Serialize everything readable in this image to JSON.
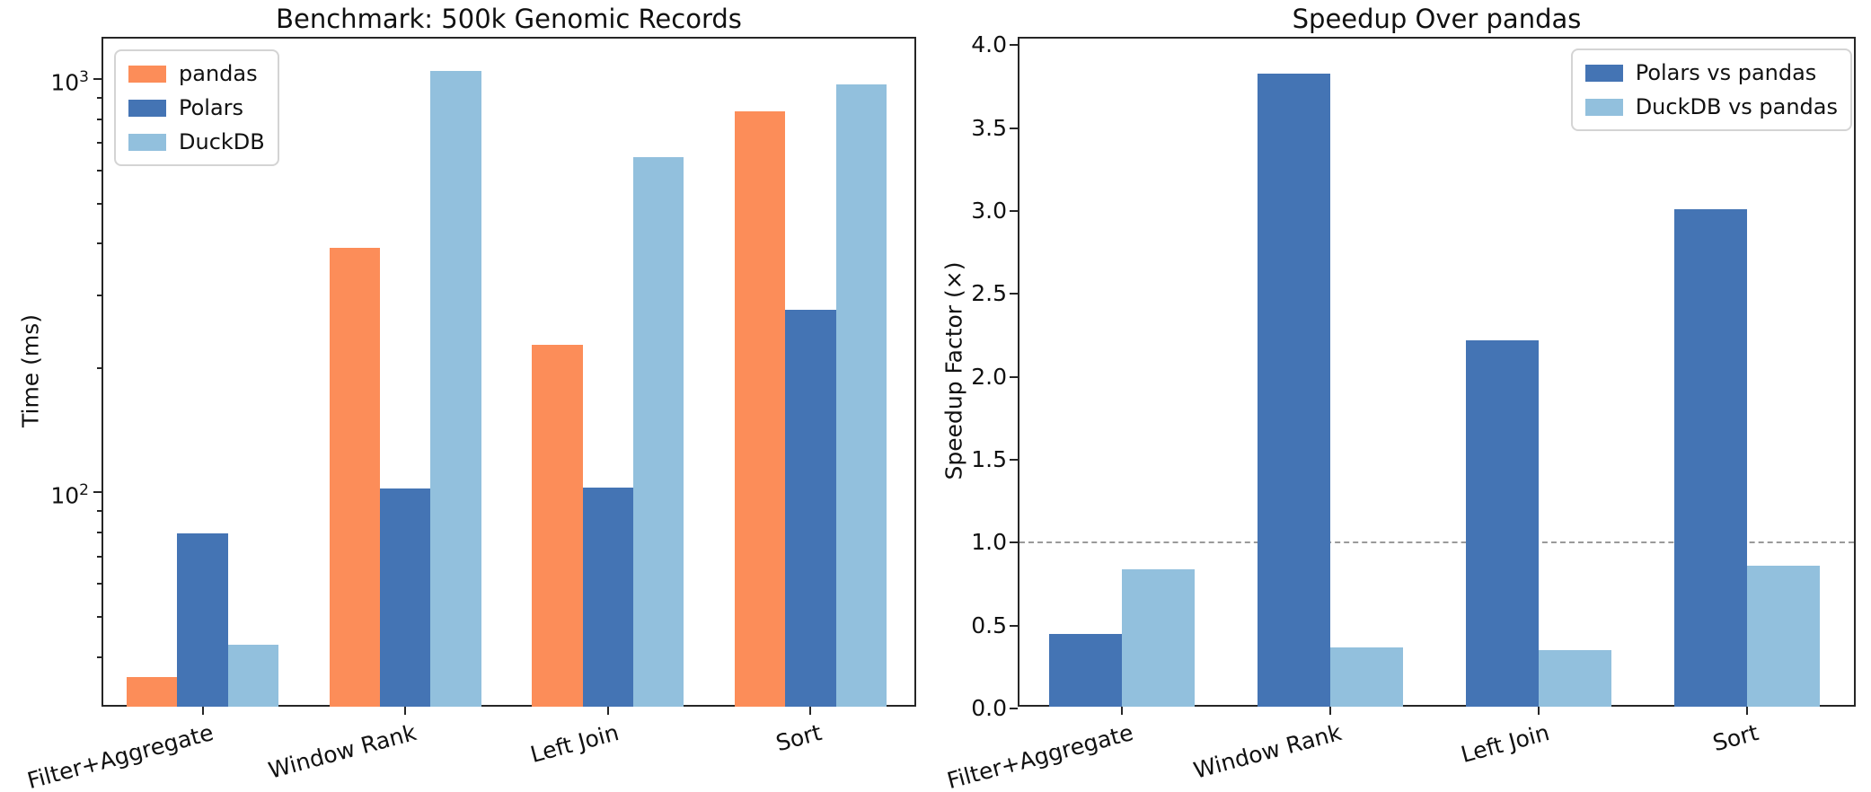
{
  "chart_data": [
    {
      "type": "bar",
      "title": "Benchmark: 500k Genomic Records",
      "ylabel": "Time (ms)",
      "yscale": "log",
      "ylim": [
        30,
        1252
      ],
      "yticks_major": [
        {
          "value": 100,
          "base": "10",
          "exp": "2"
        },
        {
          "value": 1000,
          "base": "10",
          "exp": "3"
        }
      ],
      "grid": false,
      "categories": [
        "Filter+Aggregate",
        "Window Rank",
        "Left Join",
        "Sort"
      ],
      "bar_width_units": 0.25,
      "series": [
        {
          "name": "pandas",
          "color": "#fc8d59",
          "values": [
            35.8,
            391,
            228,
            834
          ]
        },
        {
          "name": "Polars",
          "color": "#4474b4",
          "values": [
            79.5,
            102,
            102.5,
            277
          ]
        },
        {
          "name": "DuckDB",
          "color": "#92c0dd",
          "values": [
            42.8,
            1045,
            646,
            968
          ]
        }
      ],
      "legend_position": "upper-left",
      "units": "ms"
    },
    {
      "type": "bar",
      "title": "Speedup Over pandas",
      "ylabel": "Speedup Factor (×)",
      "yscale": "linear",
      "ylim": [
        0,
        4.04
      ],
      "ytick_step": 0.5,
      "ytick_label_max": 4.0,
      "grid": false,
      "reference_line": {
        "value": 1.0,
        "style": "dashed",
        "color": "#9a9a9a"
      },
      "categories": [
        "Filter+Aggregate",
        "Window Rank",
        "Left Join",
        "Sort"
      ],
      "bar_width_units": 0.35,
      "series": [
        {
          "name": "Polars vs pandas",
          "color": "#4474b4",
          "values": [
            0.45,
            3.83,
            2.22,
            3.01
          ]
        },
        {
          "name": "DuckDB vs pandas",
          "color": "#92c0dd",
          "values": [
            0.84,
            0.37,
            0.35,
            0.86
          ]
        }
      ],
      "legend_position": "upper-right",
      "units": "x"
    }
  ]
}
